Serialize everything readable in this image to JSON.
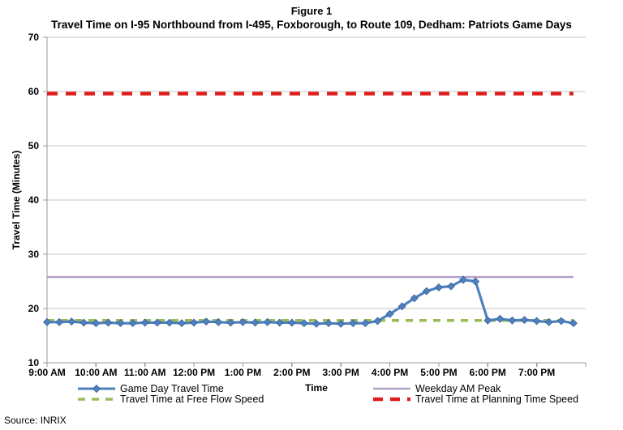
{
  "chart_data": {
    "type": "line",
    "title": "Figure 1",
    "subtitle": "Travel Time on I-95 Northbound from I-495, Foxborough, to Route 109, Dedham: Patriots Game Days",
    "xlabel": "Time",
    "ylabel": "Travel Time (Minutes)",
    "ylim": [
      10,
      70
    ],
    "ytick_step": 10,
    "grid": "horizontal",
    "legend_position": "bottom",
    "x_axis": {
      "start_hour": 9,
      "end_hour": 20,
      "tick_hours": [
        9,
        10,
        11,
        12,
        13,
        14,
        15,
        16,
        17,
        18,
        19
      ],
      "tick_labels": [
        "9:00 AM",
        "10:00 AM",
        "11:00 AM",
        "12:00 PM",
        "1:00 PM",
        "2:00 PM",
        "3:00 PM",
        "4:00 PM",
        "5:00 PM",
        "6:00 PM",
        "7:00 PM"
      ]
    },
    "sample_interval_minutes": 15,
    "data_start_hour": 9,
    "data_end_hour": 19.75,
    "series": [
      {
        "name": "Game Day Travel Time",
        "style": "line-markers",
        "marker": "diamond",
        "color": "#4f81bd",
        "marker_edge": "#38629e",
        "values": [
          17.5,
          17.5,
          17.6,
          17.4,
          17.3,
          17.4,
          17.3,
          17.3,
          17.4,
          17.4,
          17.4,
          17.3,
          17.4,
          17.6,
          17.5,
          17.4,
          17.5,
          17.4,
          17.5,
          17.4,
          17.4,
          17.3,
          17.2,
          17.3,
          17.2,
          17.3,
          17.3,
          17.7,
          19.0,
          20.4,
          21.9,
          23.2,
          23.9,
          24.1,
          25.3,
          25.0,
          17.8,
          18.1,
          17.8,
          17.9,
          17.7,
          17.5,
          17.7,
          17.3
        ]
      },
      {
        "name": "Travel Time at Free Flow Speed",
        "style": "dashed",
        "color": "#9bbb59",
        "value": 17.8
      },
      {
        "name": "Weekday AM Peak",
        "style": "solid",
        "color": "#b3a2c7",
        "value": 25.8
      },
      {
        "name": "Travel Time at Planning Time Speed",
        "style": "dashed-thick",
        "color": "#e01c1c",
        "value": 59.6
      }
    ],
    "source": "Source: INRIX",
    "colors": {
      "gridline": "#c6c6c6",
      "axis": "#999999",
      "text": "#000000"
    }
  }
}
